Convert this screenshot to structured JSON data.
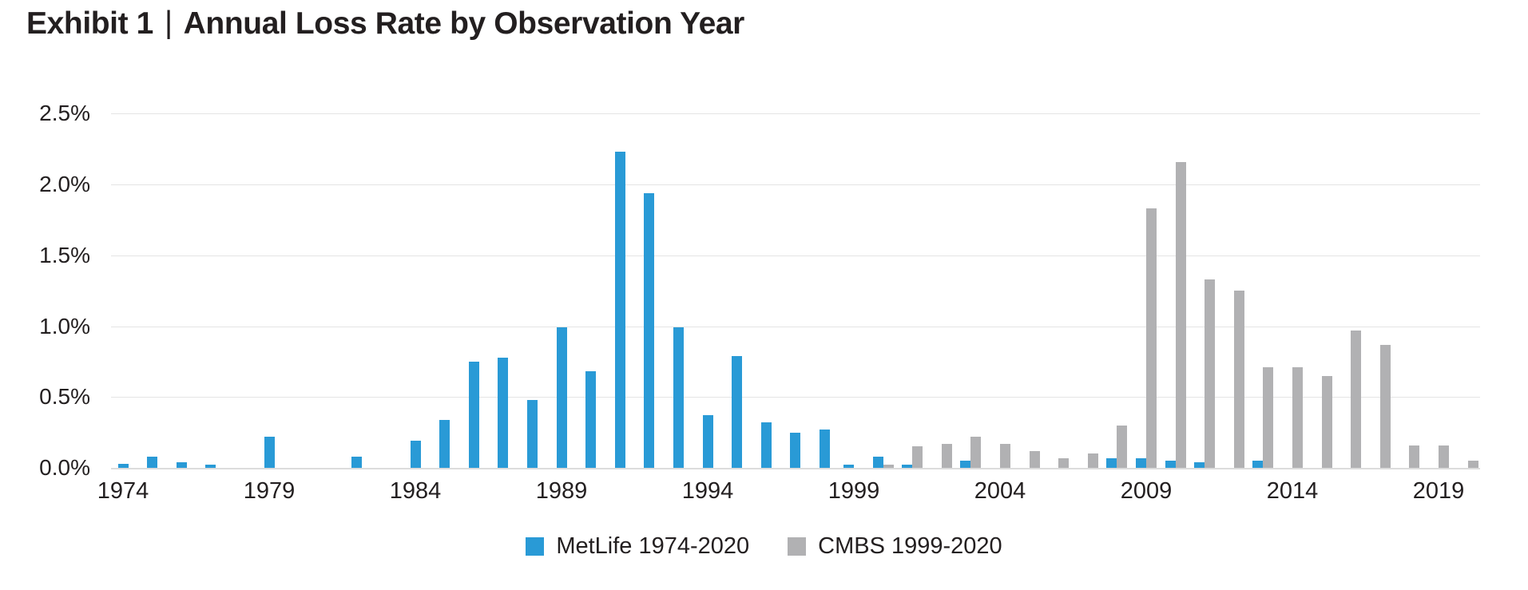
{
  "header": {
    "exhibit_label": "Exhibit 1",
    "separator": "|",
    "title": "Annual Loss Rate by Observation Year"
  },
  "colors": {
    "metlife_blue": "#299AD6",
    "cmbs_gray": "#B1B1B3",
    "gridline": "#e4e4e4",
    "axis_line": "#dcdcdc",
    "text": "#231f20",
    "background": "#ffffff"
  },
  "legend": {
    "items": [
      {
        "label": "MetLife 1974-2020",
        "color": "#299AD6"
      },
      {
        "label": "CMBS 1999-2020",
        "color": "#B1B1B3"
      }
    ]
  },
  "chart_data": {
    "type": "bar",
    "title": "Exhibit 1 | Annual Loss Rate by Observation Year",
    "xlabel": "",
    "ylabel": "",
    "ylim": [
      0,
      2.5
    ],
    "y_tick_labels": [
      "0.0%",
      "0.5%",
      "1.0%",
      "1.5%",
      "2.0%",
      "2.5%"
    ],
    "y_tick_values": [
      0.0,
      0.5,
      1.0,
      1.5,
      2.0,
      2.5
    ],
    "x_tick_labels": [
      1974,
      1979,
      1984,
      1989,
      1994,
      1999,
      2004,
      2009,
      2014,
      2019
    ],
    "grid": "horizontal",
    "legend_position": "bottom-center",
    "unit": "percent",
    "categories": [
      1974,
      1975,
      1976,
      1977,
      1978,
      1979,
      1980,
      1981,
      1982,
      1983,
      1984,
      1985,
      1986,
      1987,
      1988,
      1989,
      1990,
      1991,
      1992,
      1993,
      1994,
      1995,
      1996,
      1997,
      1998,
      1999,
      2000,
      2001,
      2002,
      2003,
      2004,
      2005,
      2006,
      2007,
      2008,
      2009,
      2010,
      2011,
      2012,
      2013,
      2014,
      2015,
      2016,
      2017,
      2018,
      2019,
      2020
    ],
    "series": [
      {
        "name": "MetLife 1974-2020",
        "color": "#299AD6",
        "values": [
          0.03,
          0.08,
          0.04,
          0.02,
          0,
          0.22,
          0,
          0,
          0.08,
          0,
          0.19,
          0.34,
          0.75,
          0.78,
          0.48,
          0.99,
          0.68,
          2.23,
          1.94,
          0.99,
          0.37,
          0.79,
          0.32,
          0.25,
          0.27,
          0.02,
          0.08,
          0.02,
          0,
          0.05,
          0,
          0,
          0,
          0,
          0.07,
          0.07,
          0.05,
          0.04,
          0,
          0.05,
          0,
          0,
          0,
          0,
          0,
          0,
          0
        ]
      },
      {
        "name": "CMBS 1999-2020",
        "color": "#B1B1B3",
        "values": [
          null,
          null,
          null,
          null,
          null,
          null,
          null,
          null,
          null,
          null,
          null,
          null,
          null,
          null,
          null,
          null,
          null,
          null,
          null,
          null,
          null,
          null,
          null,
          null,
          null,
          0.0,
          0.02,
          0.15,
          0.17,
          0.22,
          0.17,
          0.12,
          0.07,
          0.1,
          0.3,
          1.83,
          2.16,
          1.33,
          1.25,
          0.71,
          0.71,
          0.65,
          0.97,
          0.87,
          0.16,
          0.16,
          0.05
        ]
      }
    ]
  }
}
